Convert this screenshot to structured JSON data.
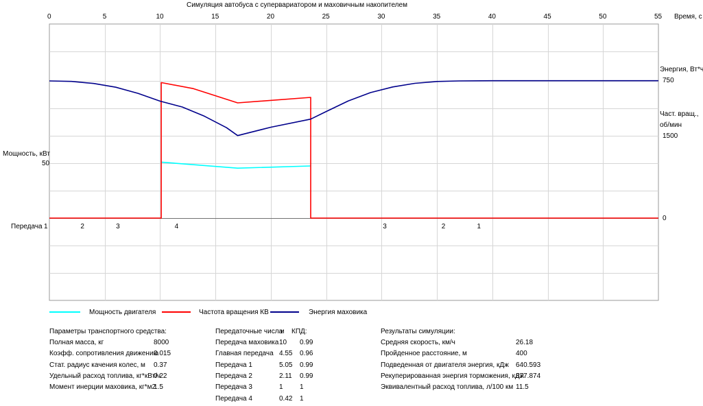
{
  "chart_data": {
    "type": "line",
    "title": "Симуляция автобуса с супервариатором и маховичным накопителем",
    "xlabel": "Время, с",
    "xlim": [
      0,
      55
    ],
    "x_ticks": [
      "0",
      "5",
      "10",
      "15",
      "20",
      "25",
      "30",
      "35",
      "40",
      "45",
      "50",
      "55"
    ],
    "grid": true,
    "left_axis": {
      "label": "Мощность, кВт",
      "tick": "50",
      "tick_value": 50,
      "max": 100
    },
    "right_axis": {
      "energy_label": "Энергия, Вт*ч",
      "energy_tick": "750",
      "speed_label_1": "Част. вращ.,",
      "speed_label_2": "об/мин",
      "speed_tick": "1500",
      "zero_tick": "0"
    },
    "gear_row": {
      "label": "Передача",
      "marks": [
        {
          "t": 0,
          "gear": "1"
        },
        {
          "t": 3,
          "gear": "2"
        },
        {
          "t": 6.2,
          "gear": "3"
        },
        {
          "t": 11.5,
          "gear": "4"
        },
        {
          "t": 30.3,
          "gear": "3"
        },
        {
          "t": 35.6,
          "gear": "2"
        },
        {
          "t": 38.8,
          "gear": "1"
        }
      ]
    },
    "series": [
      {
        "name": "Мощность двигателя",
        "color": "#00ffff",
        "scale": "power_kw",
        "segments": [
          [
            [
              10.1,
              51
            ],
            [
              17,
              45.5
            ],
            [
              23.6,
              47.5
            ]
          ]
        ]
      },
      {
        "name": "Частота вращения КВ",
        "color": "#ff0000",
        "scale": "speed_rpm",
        "segments": [
          [
            [
              0,
              0
            ],
            [
              10.1,
              0
            ],
            [
              10.1,
              2470
            ],
            [
              13,
              2360
            ],
            [
              17,
              2100
            ],
            [
              23.6,
              2200
            ],
            [
              23.6,
              0
            ],
            [
              55,
              0
            ]
          ]
        ]
      },
      {
        "name": "Энергия маховика",
        "color": "#00008b",
        "scale": "energy_wh",
        "segments": [
          [
            [
              0,
              750
            ],
            [
              2,
              745
            ],
            [
              4,
              722
            ],
            [
              6,
              680
            ],
            [
              8,
              612
            ],
            [
              10,
              525
            ],
            [
              12,
              460
            ],
            [
              14,
              358
            ],
            [
              16,
              230
            ],
            [
              17,
              142
            ],
            [
              20,
              235
            ],
            [
              23.6,
              325
            ],
            [
              25,
              410
            ],
            [
              27,
              528
            ],
            [
              29,
              620
            ],
            [
              31,
              683
            ],
            [
              33,
              723
            ],
            [
              35,
              744
            ],
            [
              37,
              750
            ],
            [
              40,
              752
            ],
            [
              55,
              752
            ]
          ]
        ]
      }
    ]
  },
  "params": {
    "title": "Параметры транспортного средства:",
    "rows": [
      {
        "label": "Полная масса, кг",
        "value": "8000"
      },
      {
        "label": "Коэфф. сопротивления движению",
        "value": "0.015"
      },
      {
        "label": "Стат. радиус качения колес, м",
        "value": "0.37"
      },
      {
        "label": "Удельный расход топлива, кг*кВт/ч",
        "value": "0.22"
      },
      {
        "label": "Момент инерции маховика, кг*м2",
        "value": "1.5"
      }
    ]
  },
  "gears": {
    "title": "Передаточные числа",
    "title2": "и",
    "title3": "КПД:",
    "rows": [
      {
        "label": "Передача маховика",
        "ratio": "10",
        "eff": "0.99"
      },
      {
        "label": "Главная передача",
        "ratio": "4.55",
        "eff": "0.96"
      },
      {
        "label": "Передача 1",
        "ratio": "5.05",
        "eff": "0.99"
      },
      {
        "label": "Передача 2",
        "ratio": "2.11",
        "eff": "0.99"
      },
      {
        "label": "Передача 3",
        "ratio": "1",
        "eff": "1"
      },
      {
        "label": "Передача 4",
        "ratio": "0.42",
        "eff": "1"
      }
    ]
  },
  "results": {
    "title": "Результаты симуляции:",
    "rows": [
      {
        "label": "Средняя скорость, км/ч",
        "value": "26.18"
      },
      {
        "label": "Пройденное расстояние, м",
        "value": "400"
      },
      {
        "label": "Подведенная от двигателя энергия, кДж",
        "value": "640.593"
      },
      {
        "label": "Рекуперированная энергия торможения, кДж",
        "value": "877.874"
      },
      {
        "label": "Эквивалентный расход топлива, л/100 км",
        "value": "11.5"
      }
    ]
  }
}
